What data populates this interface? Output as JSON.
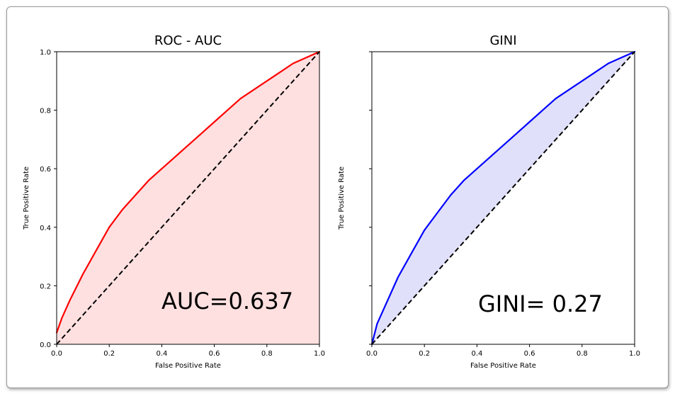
{
  "chart_data": [
    {
      "type": "line",
      "title": "ROC - AUC",
      "xlabel": "False Positive Rate",
      "ylabel": "True Positive Rate",
      "xlim": [
        0.0,
        1.0
      ],
      "ylim": [
        0.0,
        1.0
      ],
      "xticks": [
        "0.0",
        "0.2",
        "0.4",
        "0.6",
        "0.8",
        "1.0"
      ],
      "yticks": [
        "0.0",
        "0.2",
        "0.4",
        "0.6",
        "0.8",
        "1.0"
      ],
      "grid": false,
      "fill": "under-curve",
      "annotation": "AUC=0.637",
      "series": [
        {
          "color": "#ff0000",
          "fill_color": "#ffe0e0",
          "x": [
            0.0,
            0.02,
            0.05,
            0.1,
            0.15,
            0.2,
            0.25,
            0.3,
            0.35,
            0.4,
            0.45,
            0.5,
            0.55,
            0.6,
            0.65,
            0.7,
            0.75,
            0.8,
            0.85,
            0.9,
            0.95,
            1.0
          ],
          "y": [
            0.04,
            0.09,
            0.15,
            0.24,
            0.32,
            0.4,
            0.46,
            0.51,
            0.56,
            0.6,
            0.64,
            0.68,
            0.72,
            0.76,
            0.8,
            0.84,
            0.87,
            0.9,
            0.93,
            0.96,
            0.98,
            1.0
          ]
        },
        {
          "color": "#000000",
          "style": "dashed",
          "x": [
            0.0,
            1.0
          ],
          "y": [
            0.0,
            1.0
          ]
        }
      ]
    },
    {
      "type": "line",
      "title": "GINI",
      "xlabel": "False Positive Rate",
      "ylabel": "True Positive Rate",
      "xlim": [
        0.0,
        1.0
      ],
      "ylim": [
        0.0,
        1.0
      ],
      "xticks": [
        "0.0",
        "0.2",
        "0.4",
        "0.6",
        "0.8",
        "1.0"
      ],
      "yticks": [],
      "grid": false,
      "fill": "between-curve-and-diagonal",
      "annotation": "GINI= 0.27",
      "series": [
        {
          "color": "#0000ff",
          "fill_color": "#e0e0fa",
          "x": [
            0.0,
            0.02,
            0.05,
            0.1,
            0.15,
            0.2,
            0.25,
            0.3,
            0.35,
            0.4,
            0.45,
            0.5,
            0.55,
            0.6,
            0.65,
            0.7,
            0.75,
            0.8,
            0.85,
            0.9,
            0.95,
            1.0
          ],
          "y": [
            0.0,
            0.07,
            0.13,
            0.23,
            0.31,
            0.39,
            0.45,
            0.51,
            0.56,
            0.6,
            0.64,
            0.68,
            0.72,
            0.76,
            0.8,
            0.84,
            0.87,
            0.9,
            0.93,
            0.96,
            0.98,
            1.0
          ]
        },
        {
          "color": "#000000",
          "style": "dashed",
          "x": [
            0.0,
            1.0
          ],
          "y": [
            0.0,
            1.0
          ]
        }
      ]
    }
  ]
}
